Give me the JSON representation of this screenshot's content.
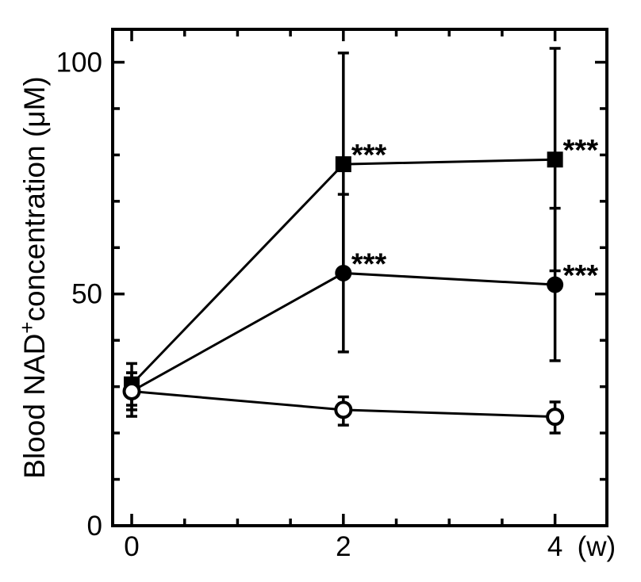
{
  "figure": {
    "background_color": "#ffffff",
    "ink_color": "#000000",
    "description": "Line chart of blood NAD+ concentration over weeks with error bars"
  },
  "chart_data": {
    "type": "line",
    "title": "",
    "xlabel": "(w)",
    "ylabel": "Blood NAD+ concentration (μM)",
    "ylabel_parts": {
      "pre": "Blood NAD",
      "sup": "+",
      "post": "concentration (μM)"
    },
    "x": [
      0,
      2,
      4
    ],
    "xlim": [
      -0.18,
      4.49
    ],
    "ylim": [
      0,
      107.1
    ],
    "xticks_major": [
      0,
      2,
      4
    ],
    "xtick_labels": [
      "0",
      "2",
      "4"
    ],
    "xtick_minor_step": 0.5,
    "yticks_major": [
      0,
      50,
      100
    ],
    "ytick_labels": [
      "0",
      "50",
      "100"
    ],
    "ytick_minor_step": 10,
    "grid": false,
    "legend_position": "none",
    "frame": "box-with-mirrored-inward-ticks",
    "significance_symbol": "***",
    "series": [
      {
        "name": "filled-square",
        "marker": "filled-square",
        "values": [
          30.5,
          78,
          79
        ],
        "err_plus": [
          4.5,
          24,
          24
        ],
        "err_minus": [
          4.5,
          23.5,
          24
        ],
        "significance": [
          "",
          "***",
          "***"
        ]
      },
      {
        "name": "filled-circle",
        "marker": "filled-circle",
        "values": [
          29,
          54.5,
          52
        ],
        "err_plus": [
          4,
          17,
          16.5
        ],
        "err_minus": [
          4,
          17,
          16.4
        ],
        "significance": [
          "",
          "***",
          "***"
        ]
      },
      {
        "name": "open-circle",
        "marker": "open-circle",
        "values": [
          29,
          25,
          23.5
        ],
        "err_plus": [
          4,
          2.8,
          3.2
        ],
        "err_minus": [
          5.4,
          3.3,
          3.5
        ],
        "significance": [
          "",
          "",
          ""
        ]
      }
    ]
  }
}
